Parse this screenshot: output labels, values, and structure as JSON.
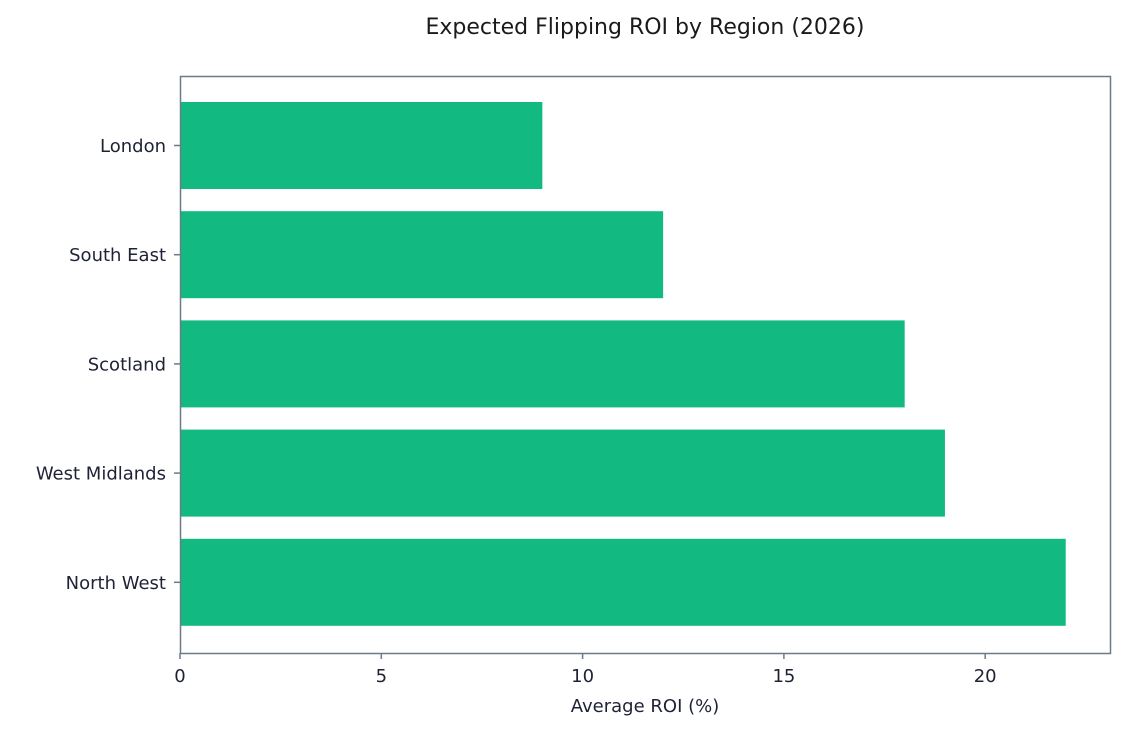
{
  "chart_data": {
    "type": "bar",
    "orientation": "horizontal",
    "title": "Expected Flipping ROI by Region (2026)",
    "xlabel": "Average ROI (%)",
    "ylabel": "",
    "categories": [
      "London",
      "South East",
      "Scotland",
      "West Midlands",
      "North West"
    ],
    "values": [
      9,
      12,
      18,
      19,
      22
    ],
    "xlim": [
      0,
      23.1
    ],
    "xticks": [
      0,
      5,
      10,
      15,
      20
    ],
    "grid": false,
    "legend": "none",
    "bar_color": "#12b981",
    "axis_color": "#6b7b88",
    "text_color": "#1e2235"
  }
}
